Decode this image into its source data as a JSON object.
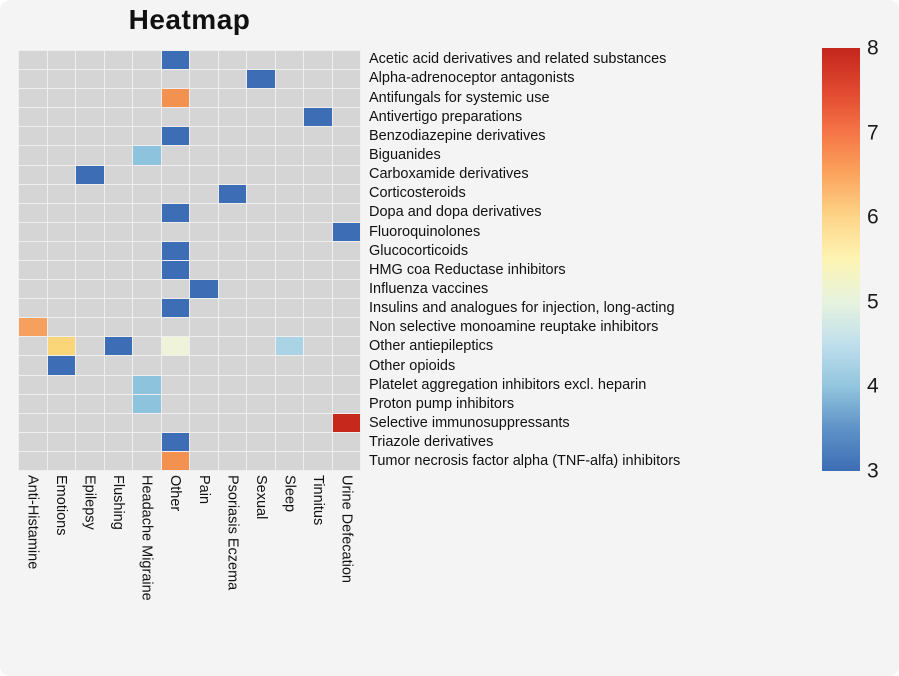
{
  "title": "Heatmap",
  "colorbar": {
    "min": 3,
    "max": 8,
    "ticks": [
      "8",
      "7",
      "6",
      "5",
      "4",
      "3"
    ],
    "gradient": [
      "#c3261d",
      "#e0482f",
      "#f57547",
      "#fba55e",
      "#fdd588",
      "#fdf4b3",
      "#e7f3de",
      "#bfdfec",
      "#92c5de",
      "#5f92c7",
      "#3d6db5"
    ]
  },
  "chart_data": {
    "type": "heatmap",
    "title": "Heatmap",
    "xlabel": "",
    "ylabel": "",
    "value_range": [
      3,
      8
    ],
    "empty_color": "#d5d5d5",
    "grid_line_color": "#efefef",
    "columns": [
      "Anti-Histamine",
      "Emotions",
      "Epilepsy",
      "Flushing",
      "Headache Migraine",
      "Other",
      "Pain",
      "Psoriasis Eczema",
      "Sexual",
      "Sleep",
      "Tinnitus",
      "Urine Defecation"
    ],
    "rows": [
      "Acetic acid derivatives and related substances",
      "Alpha-adrenoceptor antagonists",
      "Antifungals for systemic use",
      "Antivertigo preparations",
      "Benzodiazepine derivatives",
      "Biguanides",
      "Carboxamide derivatives",
      "Corticosteroids",
      "Dopa and dopa derivatives",
      "Fluoroquinolones",
      "Glucocorticoids",
      "HMG coa Reductase inhibitors",
      "Influenza vaccines",
      "Insulins and analogues for injection, long-acting",
      "Non selective monoamine reuptake inhibitors",
      "Other antiepileptics",
      "Other opioids",
      "Platelet aggregation inhibitors excl. heparin",
      "Proton pump inhibitors",
      "Selective immunosuppressants",
      "Triazole derivatives",
      "Tumor necrosis factor alpha (TNF-alfa) inhibitors"
    ],
    "cells": [
      {
        "row": "Acetic acid derivatives and related substances",
        "col": "Other",
        "value": 3,
        "color": "#3d6db5"
      },
      {
        "row": "Alpha-adrenoceptor antagonists",
        "col": "Sexual",
        "value": 3,
        "color": "#3d6db5"
      },
      {
        "row": "Antifungals for systemic use",
        "col": "Other",
        "value": 6.5,
        "color": "#f29150"
      },
      {
        "row": "Antivertigo preparations",
        "col": "Tinnitus",
        "value": 3,
        "color": "#3d6db5"
      },
      {
        "row": "Benzodiazepine derivatives",
        "col": "Other",
        "value": 3,
        "color": "#3d6db5"
      },
      {
        "row": "Biguanides",
        "col": "Headache Migraine",
        "value": 4,
        "color": "#8ec3dd"
      },
      {
        "row": "Carboxamide derivatives",
        "col": "Epilepsy",
        "value": 3,
        "color": "#3d6db5"
      },
      {
        "row": "Corticosteroids",
        "col": "Psoriasis Eczema",
        "value": 3,
        "color": "#3d6db5"
      },
      {
        "row": "Dopa and dopa derivatives",
        "col": "Other",
        "value": 3,
        "color": "#3d6db5"
      },
      {
        "row": "Fluoroquinolones",
        "col": "Urine Defecation",
        "value": 3,
        "color": "#3d6db5"
      },
      {
        "row": "Glucocorticoids",
        "col": "Other",
        "value": 3,
        "color": "#3d6db5"
      },
      {
        "row": "HMG coa Reductase inhibitors",
        "col": "Other",
        "value": 3,
        "color": "#3d6db5"
      },
      {
        "row": "Influenza vaccines",
        "col": "Pain",
        "value": 3,
        "color": "#3d6db5"
      },
      {
        "row": "Insulins and analogues for injection, long-acting",
        "col": "Other",
        "value": 3,
        "color": "#3d6db5"
      },
      {
        "row": "Non selective monoamine reuptake inhibitors",
        "col": "Anti-Histamine",
        "value": 6,
        "color": "#f6a05e"
      },
      {
        "row": "Other antiepileptics",
        "col": "Emotions",
        "value": 5.5,
        "color": "#fbd678"
      },
      {
        "row": "Other antiepileptics",
        "col": "Flushing",
        "value": 3,
        "color": "#3d6db5"
      },
      {
        "row": "Other antiepileptics",
        "col": "Other",
        "value": 5,
        "color": "#eef3da"
      },
      {
        "row": "Other antiepileptics",
        "col": "Sleep",
        "value": 4,
        "color": "#aad4e6"
      },
      {
        "row": "Other opioids",
        "col": "Emotions",
        "value": 3,
        "color": "#3d6db5"
      },
      {
        "row": "Platelet aggregation inhibitors excl. heparin",
        "col": "Headache Migraine",
        "value": 4,
        "color": "#8ec3dd"
      },
      {
        "row": "Proton pump inhibitors",
        "col": "Headache Migraine",
        "value": 4,
        "color": "#8ec3dd"
      },
      {
        "row": "Selective immunosuppressants",
        "col": "Urine Defecation",
        "value": 8,
        "color": "#c6281c"
      },
      {
        "row": "Triazole derivatives",
        "col": "Other",
        "value": 3,
        "color": "#3d6db5"
      },
      {
        "row": "Tumor necrosis factor alpha (TNF-alfa) inhibitors",
        "col": "Other",
        "value": 6.5,
        "color": "#f29150"
      }
    ]
  }
}
